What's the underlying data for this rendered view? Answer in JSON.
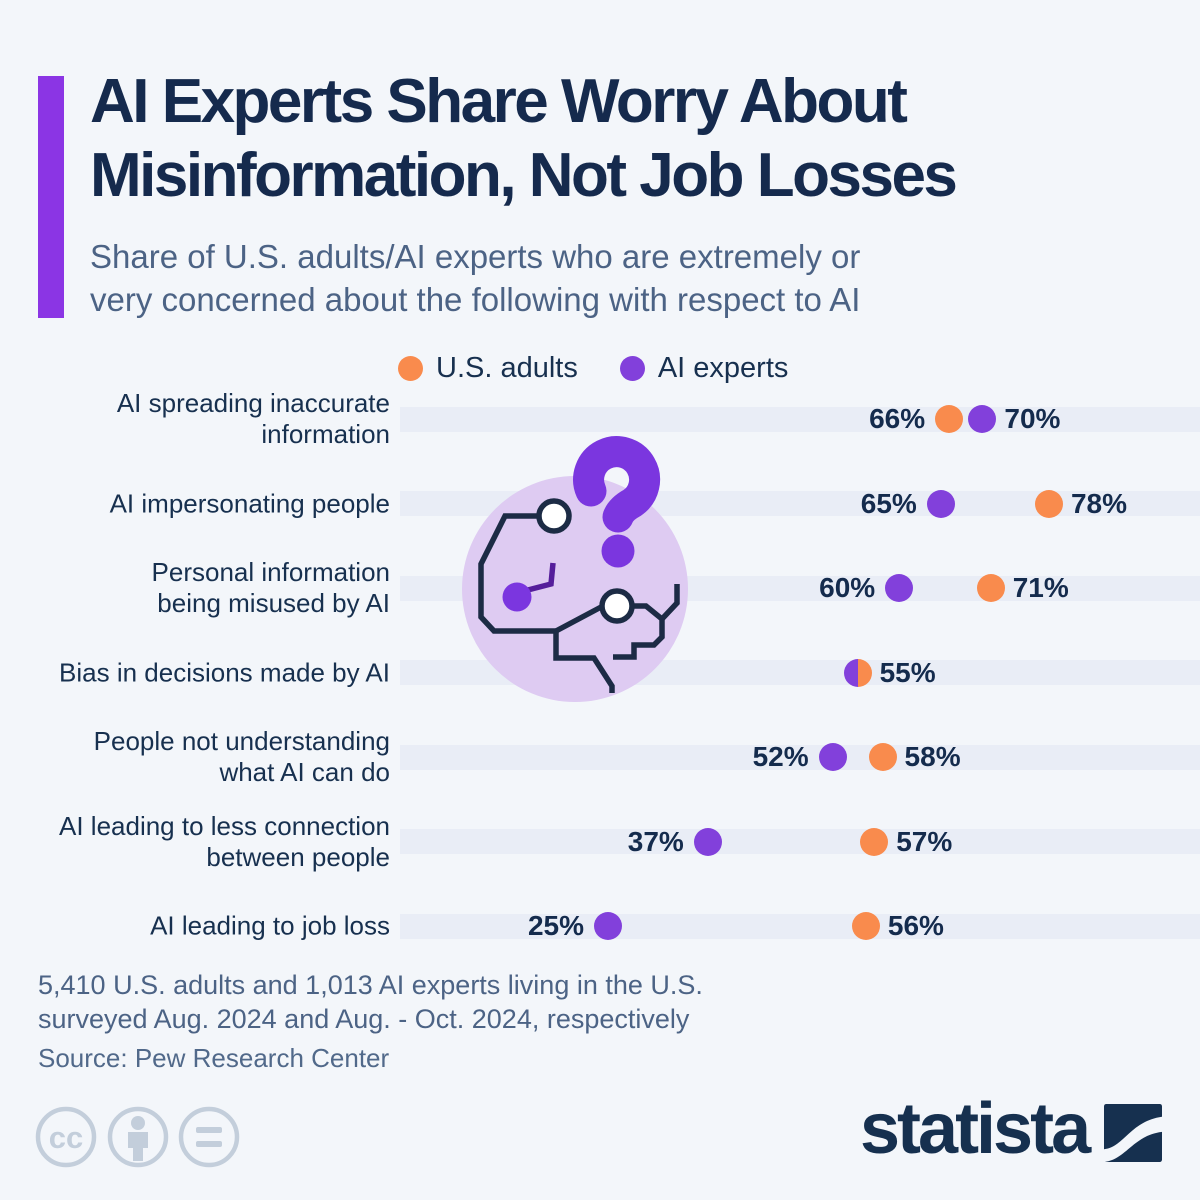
{
  "header": {
    "accent_color": "#8B35E4",
    "title_line1": "AI Experts Share Worry About",
    "title_line2": "Misinformation, Not Job Losses",
    "subtitle_line1": "Share of U.S. adults/AI experts who are extremely or",
    "subtitle_line2": "very concerned about the following with respect to AI"
  },
  "legend": {
    "items": [
      {
        "label": "U.S. adults",
        "color": "#F98B4D"
      },
      {
        "label": "AI experts",
        "color": "#8240DB"
      }
    ]
  },
  "chart_data": {
    "type": "scatter",
    "subtype": "horizontal-dot-plot",
    "unit": "%",
    "x_range": [
      0,
      96
    ],
    "grid": "row-bands",
    "legend_position": "top",
    "categories": [
      "AI spreading inaccurate information",
      "AI impersonating people",
      "Personal information being misused by AI",
      "Bias in decisions made by AI",
      "People not understanding what AI can do",
      "AI leading to less connection between people",
      "AI leading to job loss"
    ],
    "category_label_lines": [
      [
        "AI spreading inaccurate",
        "information"
      ],
      [
        "AI impersonating people"
      ],
      [
        "Personal information",
        "being misused by AI"
      ],
      [
        "Bias in decisions made by AI"
      ],
      [
        "People not understanding",
        "what AI can do"
      ],
      [
        "AI leading to less connection",
        "between people"
      ],
      [
        "AI leading to job loss"
      ]
    ],
    "series": [
      {
        "name": "U.S. adults",
        "color": "#F98B4D",
        "values": [
          66,
          78,
          71,
          55,
          58,
          57,
          56
        ]
      },
      {
        "name": "AI experts",
        "color": "#8240DB",
        "values": [
          70,
          65,
          60,
          55,
          52,
          37,
          25
        ]
      }
    ]
  },
  "footer": {
    "note_line1": "5,410 U.S. adults and 1,013 AI experts living in the U.S.",
    "note_line2": "surveyed Aug. 2024 and Aug. - Oct. 2024, respectively",
    "source": "Source: Pew Research Center"
  },
  "branding": {
    "logo_text": "statista",
    "logo_color": "#16304F"
  },
  "colors": {
    "background": "#F3F6FA",
    "row_band": "#E9EDF6",
    "title_navy": "#152A4D",
    "muted_blue": "#4C6385",
    "illustration_circle": "#DECBF2",
    "question_mark_purple": "#7B36DF",
    "brain_outline_navy": "#1C2B45",
    "cc_icon_gray": "#C3CEDB"
  }
}
